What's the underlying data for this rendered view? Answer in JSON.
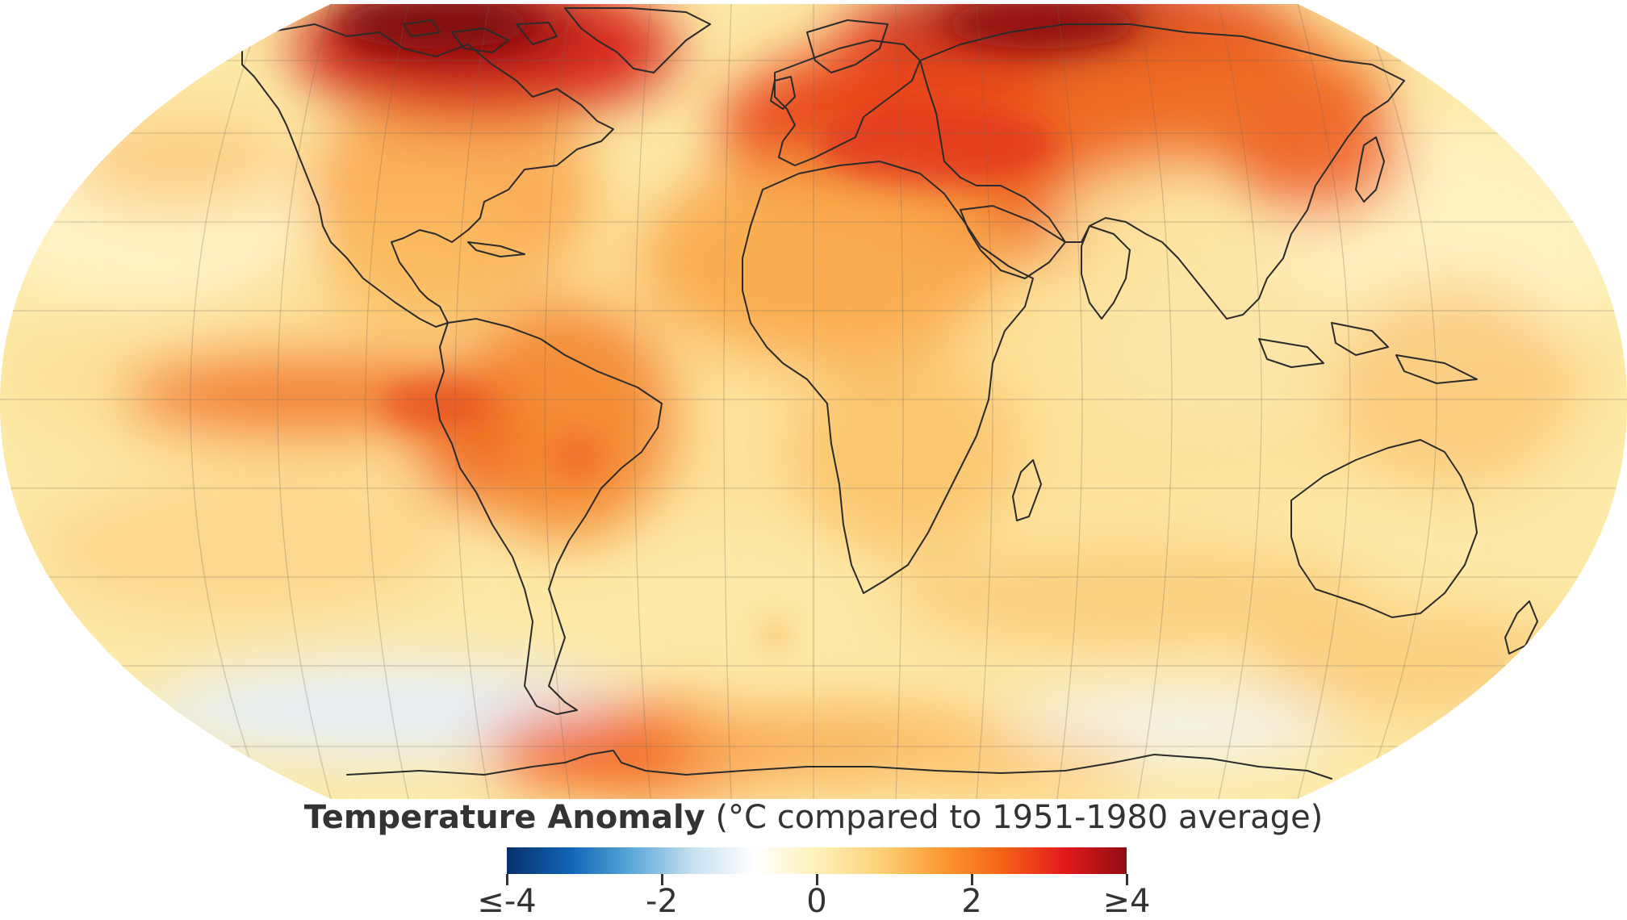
{
  "legend": {
    "title_bold": "Temperature Anomaly",
    "title_rest": " (°C compared to 1951-1980 average)",
    "ticks": [
      {
        "label": "≤-4",
        "value": -4
      },
      {
        "label": "-2",
        "value": -2
      },
      {
        "label": "0",
        "value": 0
      },
      {
        "label": "2",
        "value": 2
      },
      {
        "label": "≥4",
        "value": 4
      }
    ],
    "colors": [
      "#08306b",
      "#0f63b4",
      "#5aa7d9",
      "#c8e0f0",
      "#ffffff",
      "#fff1b8",
      "#fdd27a",
      "#fb9a32",
      "#f46318",
      "#e31a1c",
      "#8f0c12"
    ]
  },
  "map": {
    "projection": "Robinson",
    "ocean_base_color": "#fdeaa8",
    "anomaly_hotspots": [
      {
        "region": "Arctic Canada / Greenland",
        "value": 4
      },
      {
        "region": "Northern Siberia",
        "value": 4
      },
      {
        "region": "Europe / Middle East",
        "value": 3
      },
      {
        "region": "Eastern Pacific (equatorial)",
        "value": 2.5
      },
      {
        "region": "South America interior",
        "value": 2
      },
      {
        "region": "Antarctic Peninsula",
        "value": 2.8
      },
      {
        "region": "Southern Ocean (Pacific sector)",
        "value": -1
      }
    ]
  }
}
